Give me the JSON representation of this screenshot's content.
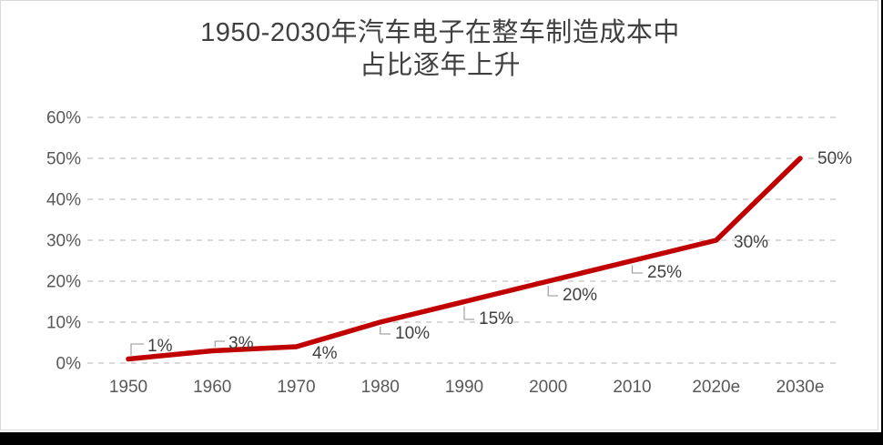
{
  "chart_data": {
    "type": "line",
    "title": "1950-2030年汽车电子在整车制造成本中占比逐年上升",
    "title_lines": [
      "1950-2030年汽车电子在整车制造成本中",
      "占比逐年上升"
    ],
    "categories": [
      "1950",
      "1960",
      "1970",
      "1980",
      "1990",
      "2000",
      "2010",
      "2020e",
      "2030e"
    ],
    "values": [
      1,
      3,
      4,
      10,
      15,
      20,
      25,
      30,
      50
    ],
    "data_labels": [
      "1%",
      "3%",
      "4%",
      "10%",
      "15%",
      "20%",
      "25%",
      "30%",
      "50%"
    ],
    "y_ticks": [
      {
        "value": 0,
        "label": "0%"
      },
      {
        "value": 10,
        "label": "10%"
      },
      {
        "value": 20,
        "label": "20%"
      },
      {
        "value": 30,
        "label": "30%"
      },
      {
        "value": 40,
        "label": "40%"
      },
      {
        "value": 50,
        "label": "50%"
      },
      {
        "value": 60,
        "label": "60%"
      }
    ],
    "ylim": [
      0,
      60
    ],
    "xlabel": "",
    "ylabel": "",
    "legend": "none",
    "grid": "horizontal-dashed",
    "colors": {
      "line": "#C00000",
      "title_text": "#404040",
      "axis_text": "#595959",
      "data_label_text": "#404040",
      "gridline": "#D5D5D5",
      "leader_line": "#A6A6A6",
      "card_border": "#D9D9D9",
      "bottom_bar": "#000000",
      "background": "#FFFFFF"
    }
  }
}
